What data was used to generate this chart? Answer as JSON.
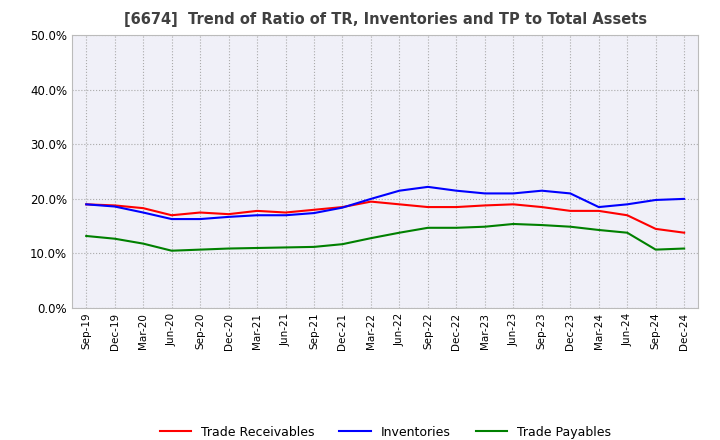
{
  "title": "[6674]  Trend of Ratio of TR, Inventories and TP to Total Assets",
  "x_labels": [
    "Sep-19",
    "Dec-19",
    "Mar-20",
    "Jun-20",
    "Sep-20",
    "Dec-20",
    "Mar-21",
    "Jun-21",
    "Sep-21",
    "Dec-21",
    "Mar-22",
    "Jun-22",
    "Sep-22",
    "Dec-22",
    "Mar-23",
    "Jun-23",
    "Sep-23",
    "Dec-23",
    "Mar-24",
    "Jun-24",
    "Sep-24",
    "Dec-24"
  ],
  "trade_receivables": [
    0.19,
    0.188,
    0.183,
    0.17,
    0.175,
    0.172,
    0.178,
    0.175,
    0.18,
    0.185,
    0.195,
    0.19,
    0.185,
    0.185,
    0.188,
    0.19,
    0.185,
    0.178,
    0.178,
    0.17,
    0.145,
    0.138
  ],
  "inventories": [
    0.19,
    0.186,
    0.175,
    0.163,
    0.163,
    0.167,
    0.17,
    0.17,
    0.174,
    0.184,
    0.2,
    0.215,
    0.222,
    0.215,
    0.21,
    0.21,
    0.215,
    0.21,
    0.185,
    0.19,
    0.198,
    0.2
  ],
  "trade_payables": [
    0.132,
    0.127,
    0.118,
    0.105,
    0.107,
    0.109,
    0.11,
    0.111,
    0.112,
    0.117,
    0.128,
    0.138,
    0.147,
    0.147,
    0.149,
    0.154,
    0.152,
    0.149,
    0.143,
    0.138,
    0.107,
    0.109
  ],
  "ylim": [
    0.0,
    0.5
  ],
  "yticks": [
    0.0,
    0.1,
    0.2,
    0.3,
    0.4,
    0.5
  ],
  "line_colors": {
    "trade_receivables": "#ff0000",
    "inventories": "#0000ff",
    "trade_payables": "#008000"
  },
  "legend_labels": [
    "Trade Receivables",
    "Inventories",
    "Trade Payables"
  ],
  "background_color": "#ffffff",
  "plot_bg_color": "#f0f0f8",
  "grid_color": "#aaaaaa",
  "title_color": "#404040"
}
